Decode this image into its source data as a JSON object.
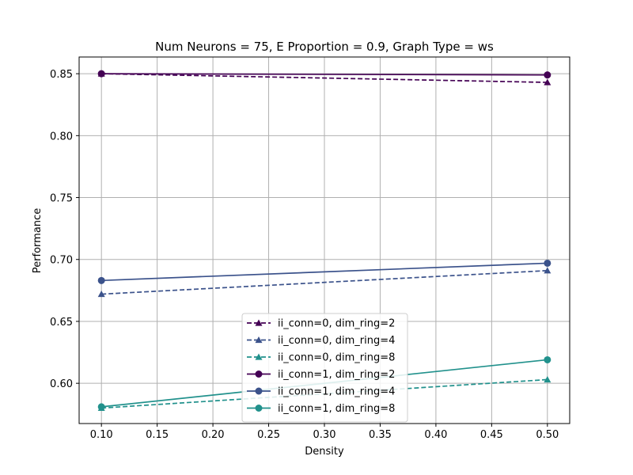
{
  "chart_data": {
    "type": "line",
    "title": "Num Neurons = 75, E Proportion = 0.9, Graph Type = ws",
    "xlabel": "Density",
    "ylabel": "Performance",
    "xlim": [
      0.08,
      0.52
    ],
    "ylim": [
      0.5675,
      0.8635
    ],
    "xticks": [
      0.1,
      0.15,
      0.2,
      0.25,
      0.3,
      0.35,
      0.4,
      0.45,
      0.5
    ],
    "yticks": [
      0.6,
      0.65,
      0.7,
      0.75,
      0.8,
      0.85
    ],
    "grid": true,
    "legend_position": "lower-center",
    "x": [
      0.1,
      0.5
    ],
    "series": [
      {
        "name": "ii_conn=0, dim_ring=2",
        "values": [
          0.85,
          0.843
        ],
        "color": "#440154",
        "dash": "dashed",
        "marker": "triangle"
      },
      {
        "name": "ii_conn=0, dim_ring=4",
        "values": [
          0.672,
          0.691
        ],
        "color": "#3b528b",
        "dash": "dashed",
        "marker": "triangle"
      },
      {
        "name": "ii_conn=0, dim_ring=8",
        "values": [
          0.58,
          0.603
        ],
        "color": "#21918c",
        "dash": "dashed",
        "marker": "triangle"
      },
      {
        "name": "ii_conn=1, dim_ring=2",
        "values": [
          0.85,
          0.849
        ],
        "color": "#440154",
        "dash": "solid",
        "marker": "circle"
      },
      {
        "name": "ii_conn=1, dim_ring=4",
        "values": [
          0.683,
          0.697
        ],
        "color": "#3b528b",
        "dash": "solid",
        "marker": "circle"
      },
      {
        "name": "ii_conn=1, dim_ring=8",
        "values": [
          0.581,
          0.619
        ],
        "color": "#21918c",
        "dash": "solid",
        "marker": "circle"
      }
    ]
  }
}
